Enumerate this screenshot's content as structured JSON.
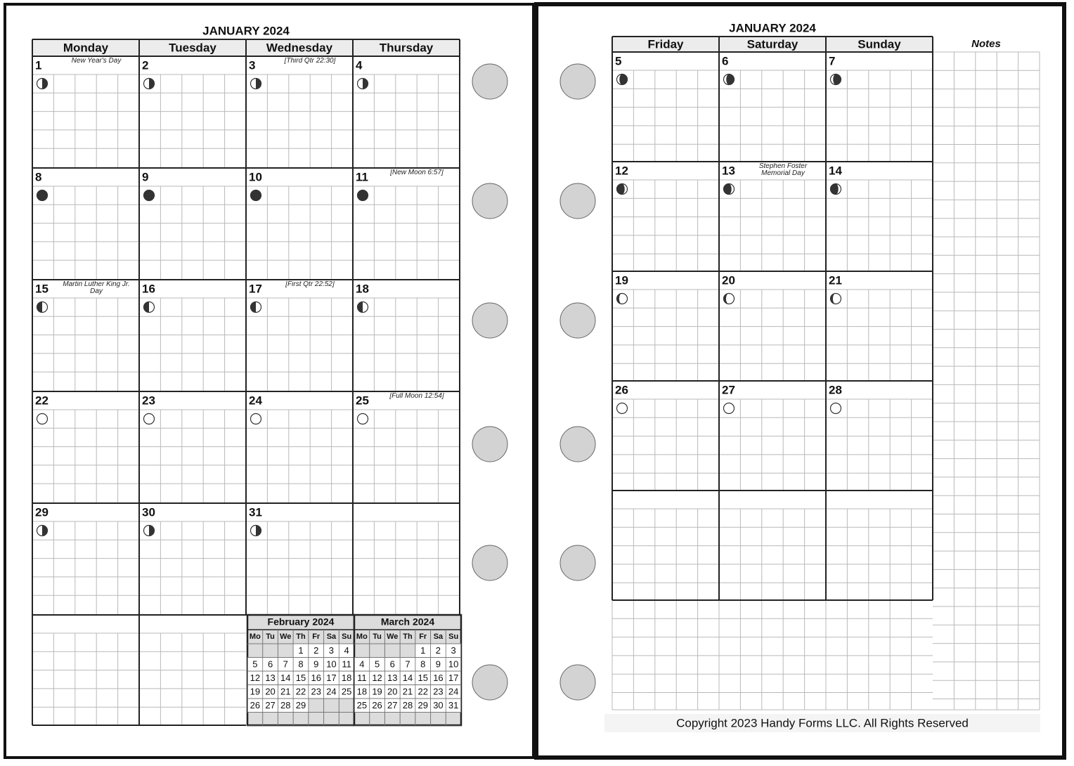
{
  "left_page": {
    "title": "JANUARY 2024",
    "weekdays": [
      "Monday",
      "Tuesday",
      "Wednesday",
      "Thursday"
    ],
    "weeks": [
      [
        {
          "day": 1,
          "note": "New Year's Day"
        },
        {
          "day": 2
        },
        {
          "day": 3,
          "note": "[Third Qtr 22:30]"
        },
        {
          "day": 4
        }
      ],
      [
        {
          "day": 8
        },
        {
          "day": 9
        },
        {
          "day": 10
        },
        {
          "day": 11,
          "note": "[New Moon 6:57]"
        }
      ],
      [
        {
          "day": 15,
          "note": "Martin Luther King Jr. Day"
        },
        {
          "day": 16
        },
        {
          "day": 17,
          "note": "[First Qtr 22:52]"
        },
        {
          "day": 18
        }
      ],
      [
        {
          "day": 22
        },
        {
          "day": 23
        },
        {
          "day": 24
        },
        {
          "day": 25,
          "note": "[Full Moon 12:54]"
        }
      ],
      [
        {
          "day": 29
        },
        {
          "day": 30
        },
        {
          "day": 31
        },
        null
      ]
    ],
    "mini_calendars": [
      {
        "title": "February 2024",
        "weekdays": [
          "Mo",
          "Tu",
          "We",
          "Th",
          "Fr",
          "Sa",
          "Su"
        ],
        "weeks": [
          [
            null,
            null,
            null,
            1,
            2,
            3,
            4
          ],
          [
            5,
            6,
            7,
            8,
            9,
            10,
            11
          ],
          [
            12,
            13,
            14,
            15,
            16,
            17,
            18
          ],
          [
            19,
            20,
            21,
            22,
            23,
            24,
            25
          ],
          [
            26,
            27,
            28,
            29,
            null,
            null,
            null
          ]
        ]
      },
      {
        "title": "March 2024",
        "weekdays": [
          "Mo",
          "Tu",
          "We",
          "Th",
          "Fr",
          "Sa",
          "Su"
        ],
        "weeks": [
          [
            null,
            null,
            null,
            null,
            1,
            2,
            3
          ],
          [
            4,
            5,
            6,
            7,
            8,
            9,
            10
          ],
          [
            11,
            12,
            13,
            14,
            15,
            16,
            17
          ],
          [
            18,
            19,
            20,
            21,
            22,
            23,
            24
          ],
          [
            25,
            26,
            27,
            28,
            29,
            30,
            31
          ]
        ]
      }
    ],
    "copyright": "Copyright 2023 Handy Forms LLC. All Rights Reserved"
  },
  "right_page": {
    "title": "JANUARY 2024",
    "weekdays": [
      "Friday",
      "Saturday",
      "Sunday"
    ],
    "notes_label": "Notes",
    "weeks": [
      [
        {
          "day": 5
        },
        {
          "day": 6
        },
        {
          "day": 7
        }
      ],
      [
        {
          "day": 12
        },
        {
          "day": 13,
          "note": "Stephen Foster Memorial Day"
        },
        {
          "day": 14
        }
      ],
      [
        {
          "day": 19
        },
        {
          "day": 20
        },
        {
          "day": 21
        }
      ],
      [
        {
          "day": 26
        },
        {
          "day": 27
        },
        {
          "day": 28
        }
      ],
      [
        null,
        null,
        null
      ]
    ],
    "copyright": "Copyright 2023 Handy Forms LLC. All Rights Reserved"
  }
}
